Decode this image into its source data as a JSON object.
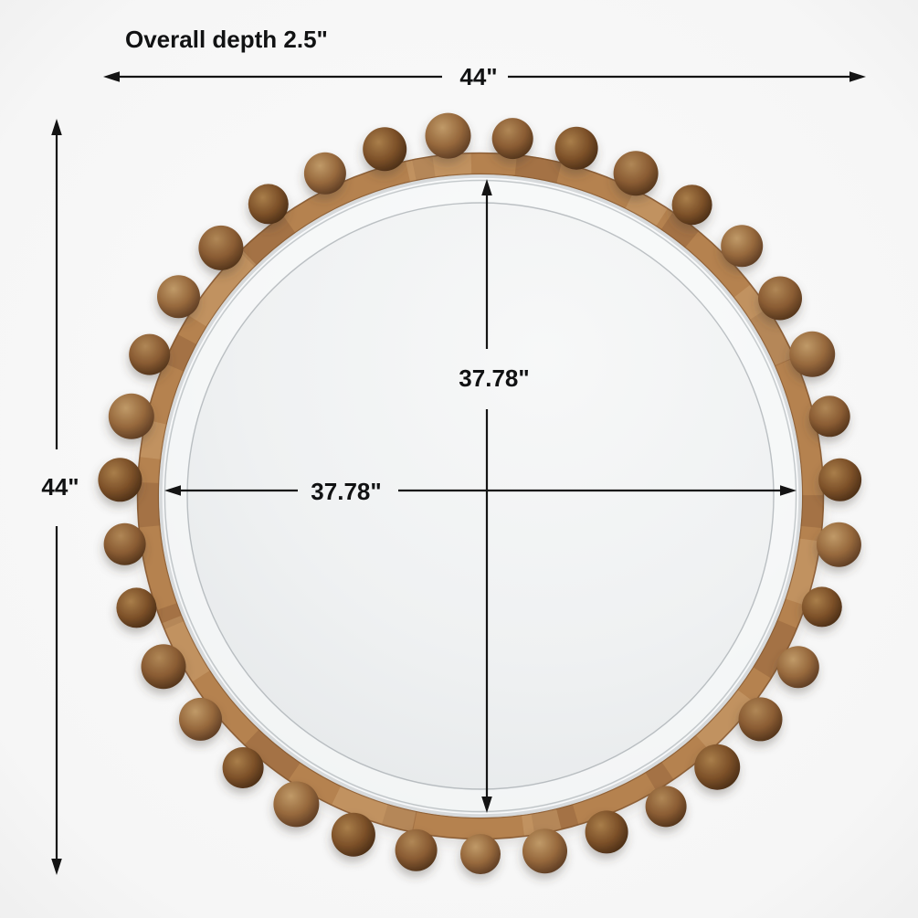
{
  "diagram": {
    "labels": {
      "overall_depth": "Overall depth 2.5\"",
      "overall_width": "44\"",
      "overall_height": "44\"",
      "glass_width": "37.78\"",
      "glass_height": "37.78\""
    }
  },
  "mirror": {
    "bead_count": 35,
    "colors": {
      "frame_wood": "#b5824f",
      "frame_grain_dark": "rgba(125,80,42,0.30)",
      "frame_grain_light": "rgba(226,189,140,0.28)",
      "frame_rim_dark": "#83552e",
      "silver_rim": "#d7dadc",
      "silver_rim_bright": "#fafbfc",
      "glass_center": "#f7f8f8",
      "glass_mid": "#eff1f2",
      "glass_edge": "#e1e4e6",
      "bevel_band": "rgba(250,251,252,0.60)",
      "bevel_line_inner": "rgba(140,148,153,0.55)",
      "bevel_line_outer": "rgba(160,168,172,0.55)",
      "bead0_hi": "#c09a68",
      "bead0_mid": "#96683c",
      "bead0_dark": "#573821",
      "bead1_hi": "#b08756",
      "bead1_mid": "#8a5c33",
      "bead1_dark": "#4e3119",
      "bead2_hi": "#a97e4a",
      "bead2_mid": "#7d5129",
      "bead2_dark": "#452a14",
      "dimension_line": "#141414",
      "background_center": "#fbfbfb",
      "background_edge": "#eeeeee"
    }
  }
}
